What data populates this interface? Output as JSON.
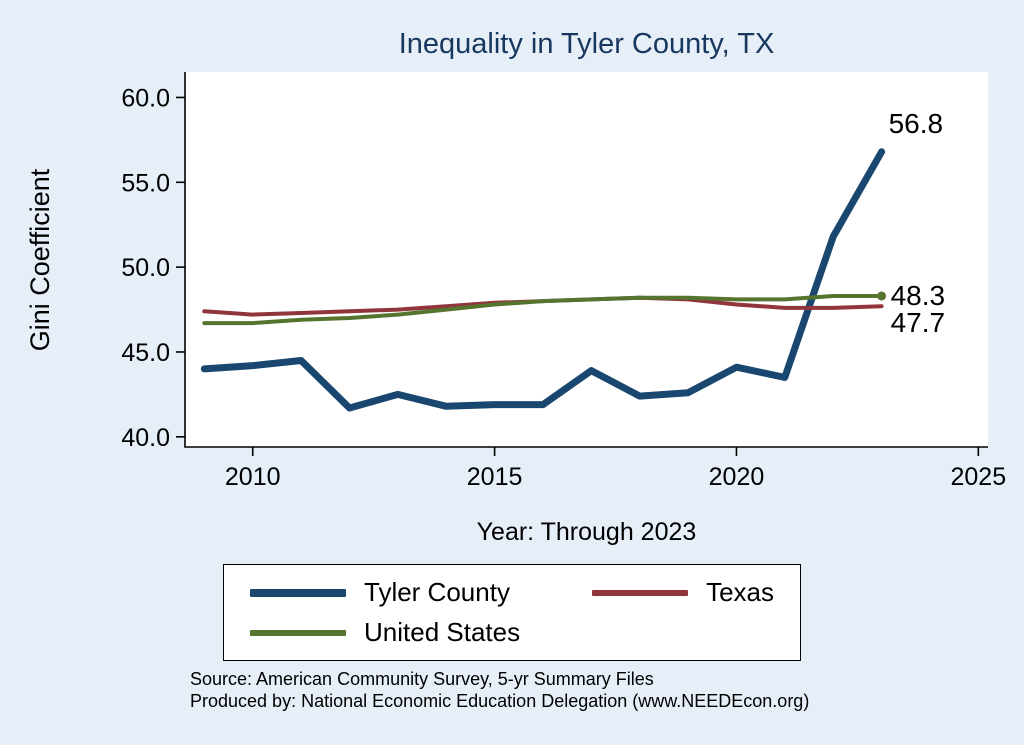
{
  "colors": {
    "background": "#e6eff8",
    "title": "#17375e",
    "axis": "#000000",
    "plot_background": "#ffffff"
  },
  "chart": {
    "title": "Inequality in Tyler County, TX",
    "ylabel": "Gini Coefficient",
    "xlabel": "Year: Through 2023",
    "source_line1": "Source: American Community Survey, 5-yr Summary Files",
    "source_line2": "Produced by: National Economic Education Delegation (www.NEEDEcon.org)"
  },
  "chart_data": {
    "type": "line",
    "title": "Inequality in Tyler County, TX",
    "xlabel": "Year: Through 2023",
    "ylabel": "Gini Coefficient",
    "x": [
      2009,
      2010,
      2011,
      2012,
      2013,
      2014,
      2015,
      2016,
      2017,
      2018,
      2019,
      2020,
      2021,
      2022,
      2023
    ],
    "series": [
      {
        "name": "Tyler County",
        "color": "#1a476f",
        "width": 7,
        "values": [
          44.0,
          44.2,
          44.5,
          41.7,
          42.5,
          41.8,
          41.9,
          41.9,
          43.9,
          42.4,
          42.6,
          44.1,
          43.5,
          51.8,
          56.8
        ],
        "end_label": "56.8",
        "end_marker": false,
        "label_offset": [
          7,
          -19
        ]
      },
      {
        "name": "Texas",
        "color": "#90353b",
        "width": 4,
        "values": [
          47.4,
          47.2,
          47.3,
          47.4,
          47.5,
          47.7,
          47.9,
          48.0,
          48.1,
          48.2,
          48.1,
          47.8,
          47.6,
          47.6,
          47.7
        ],
        "end_label": "47.7",
        "end_marker": false,
        "label_offset": [
          9,
          26
        ]
      },
      {
        "name": "United States",
        "color": "#55752f",
        "width": 4,
        "values": [
          46.7,
          46.7,
          46.9,
          47.0,
          47.2,
          47.5,
          47.8,
          48.0,
          48.1,
          48.2,
          48.2,
          48.1,
          48.1,
          48.3,
          48.3
        ],
        "end_label": "48.3",
        "end_marker": true,
        "label_offset": [
          9,
          9
        ]
      }
    ],
    "xticks": [
      2010,
      2015,
      2020,
      2025
    ],
    "xtick_labels": [
      "2010",
      "2015",
      "2020",
      "2025"
    ],
    "yticks": [
      40,
      45,
      50,
      55,
      60
    ],
    "ytick_labels": [
      "40.0",
      "45.0",
      "50.0",
      "55.0",
      "60.0"
    ],
    "xlim": [
      2008.6,
      2025.2
    ],
    "ylim": [
      39.4,
      61.5
    ],
    "grid": false,
    "legend_position": "bottom",
    "legend_order": [
      "Tyler County",
      "Texas",
      "United States"
    ]
  }
}
